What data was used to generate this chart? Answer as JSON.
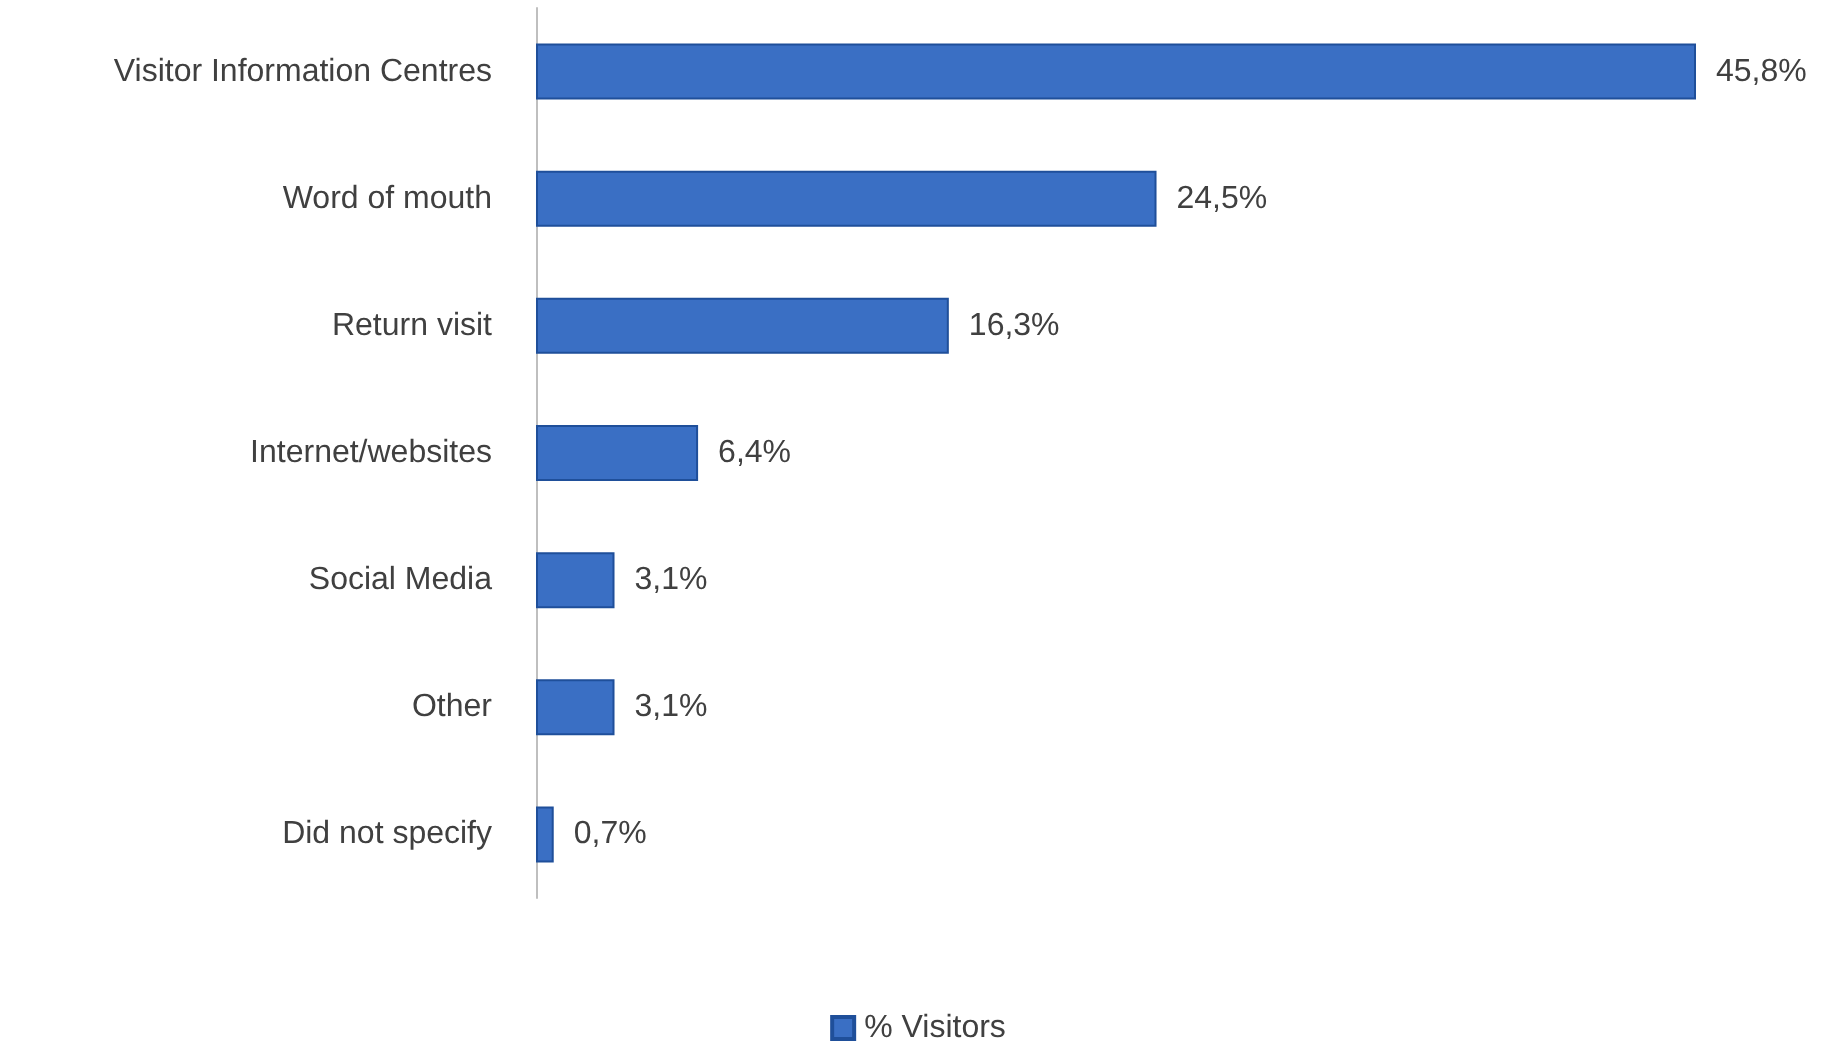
{
  "chart_data": {
    "type": "bar",
    "orientation": "horizontal",
    "categories": [
      "Visitor Information Centres",
      "Word of mouth",
      "Return visit",
      "Internet/websites",
      "Social Media",
      "Other",
      "Did not specify"
    ],
    "series": [
      {
        "name": "% Visitors",
        "color": "#3a6fc4",
        "values": [
          45.8,
          24.5,
          16.3,
          6.4,
          3.1,
          3.1,
          0.7
        ],
        "value_labels": [
          "45,8%",
          "24,5%",
          "16,3%",
          "6,4%",
          "3,1%",
          "3,1%",
          "0,7%"
        ]
      }
    ],
    "legend": "bottom"
  }
}
